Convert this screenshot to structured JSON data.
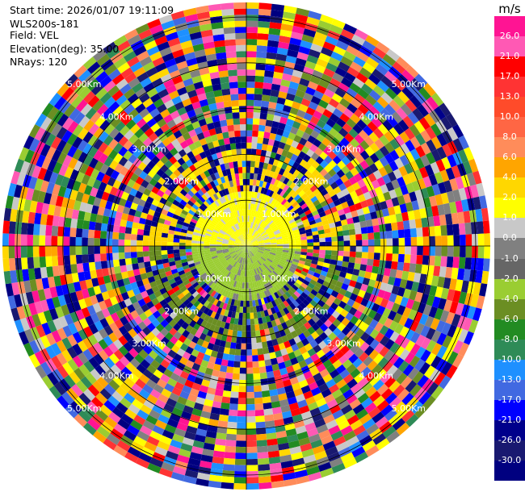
{
  "header": {
    "start_time": "Start time: 2026/01/07 19:11:09",
    "instrument": "WLS200s-181",
    "field": "Field: VEL",
    "elevation": "Elevation(deg): 35.00",
    "nrays": "NRays: 120"
  },
  "chart_data": {
    "type": "heatmap",
    "projection": "polar-ppi",
    "field": "VEL",
    "units": "m/s",
    "n_rays": 120,
    "elevation_deg": 35.0,
    "range_rings_km": [
      1,
      2,
      3,
      4,
      5
    ],
    "ring_labels": [
      "1.00Km",
      "2.00Km",
      "3.00Km",
      "4.00Km",
      "5.00Km"
    ],
    "max_range_km": 5.3,
    "colorbar": {
      "unit": "m/s",
      "min": -30.0,
      "max": 30.0,
      "tick_labels": [
        "26.0",
        "21.0",
        "17.0",
        "13.0",
        "10.0",
        "8.0",
        "6.0",
        "4.0",
        "2.0",
        "1.0",
        "0.0",
        "-1.0",
        "-2.0",
        "-4.0",
        "-6.0",
        "-8.0",
        "-10.0",
        "-13.0",
        "-17.0",
        "-21.0",
        "-26.0",
        "-30.0"
      ],
      "colors": [
        "#ff1493",
        "#ff59b4",
        "#ff0000",
        "#ff3333",
        "#ff4b2a",
        "#ff6644",
        "#ff8c5a",
        "#ffa500",
        "#ffd700",
        "#ffff00",
        "#c8c8c8",
        "#808080",
        "#666666",
        "#9acd32",
        "#6b8e23",
        "#228b22",
        "#2e8b57",
        "#1e90ff",
        "#4169e1",
        "#0000ff",
        "#00008b",
        "#191970",
        "#000080"
      ]
    }
  }
}
